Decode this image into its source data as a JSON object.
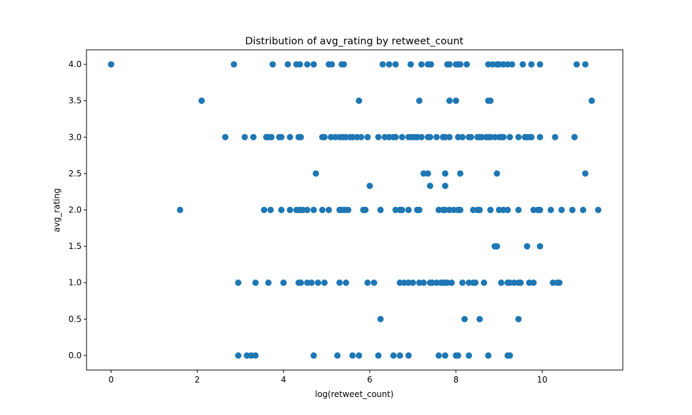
{
  "chart_data": {
    "type": "scatter",
    "title": "Distribution of avg_rating by retweet_count",
    "xlabel": "log(retweet_count)",
    "ylabel": "avg_rating",
    "xlim": [
      -0.57,
      11.87
    ],
    "ylim": [
      -0.2,
      4.2
    ],
    "xticks": [
      0,
      2,
      4,
      6,
      8,
      10
    ],
    "yticks": [
      0.0,
      0.5,
      1.0,
      1.5,
      2.0,
      2.5,
      3.0,
      3.5,
      4.0
    ],
    "xtick_labels": [
      "0",
      "2",
      "4",
      "6",
      "8",
      "10"
    ],
    "ytick_labels": [
      "0.0",
      "0.5",
      "1.0",
      "1.5",
      "2.0",
      "2.5",
      "3.0",
      "3.5",
      "4.0"
    ],
    "grid": false,
    "marker_color": "#1f77b4",
    "points": [
      [
        0.0,
        4.0
      ],
      [
        2.85,
        4.0
      ],
      [
        3.75,
        4.0
      ],
      [
        4.1,
        4.0
      ],
      [
        4.3,
        4.0
      ],
      [
        4.38,
        4.0
      ],
      [
        4.55,
        4.0
      ],
      [
        4.7,
        4.0
      ],
      [
        5.05,
        4.0
      ],
      [
        5.12,
        4.0
      ],
      [
        5.35,
        4.0
      ],
      [
        5.4,
        4.0
      ],
      [
        6.3,
        4.0
      ],
      [
        6.45,
        4.0
      ],
      [
        6.6,
        4.0
      ],
      [
        6.95,
        4.0
      ],
      [
        7.2,
        4.0
      ],
      [
        7.35,
        4.0
      ],
      [
        7.42,
        4.0
      ],
      [
        7.8,
        4.0
      ],
      [
        7.85,
        4.0
      ],
      [
        8.0,
        4.0
      ],
      [
        8.05,
        4.0
      ],
      [
        8.1,
        4.0
      ],
      [
        8.25,
        4.0
      ],
      [
        8.75,
        4.0
      ],
      [
        8.85,
        4.0
      ],
      [
        8.95,
        4.0
      ],
      [
        9.0,
        4.0
      ],
      [
        9.1,
        4.0
      ],
      [
        9.2,
        4.0
      ],
      [
        9.3,
        4.0
      ],
      [
        9.55,
        4.0
      ],
      [
        9.75,
        4.0
      ],
      [
        9.95,
        4.0
      ],
      [
        10.8,
        4.0
      ],
      [
        11.0,
        4.0
      ],
      [
        2.1,
        3.5
      ],
      [
        5.75,
        3.5
      ],
      [
        7.15,
        3.5
      ],
      [
        7.85,
        3.5
      ],
      [
        8.0,
        3.5
      ],
      [
        8.75,
        3.5
      ],
      [
        8.8,
        3.5
      ],
      [
        11.15,
        3.5
      ],
      [
        2.65,
        3.0
      ],
      [
        3.1,
        3.0
      ],
      [
        3.3,
        3.0
      ],
      [
        3.6,
        3.0
      ],
      [
        3.65,
        3.0
      ],
      [
        3.72,
        3.0
      ],
      [
        3.9,
        3.0
      ],
      [
        3.95,
        3.0
      ],
      [
        4.15,
        3.0
      ],
      [
        4.35,
        3.0
      ],
      [
        4.4,
        3.0
      ],
      [
        4.9,
        3.0
      ],
      [
        4.95,
        3.0
      ],
      [
        5.1,
        3.0
      ],
      [
        5.2,
        3.0
      ],
      [
        5.3,
        3.0
      ],
      [
        5.38,
        3.0
      ],
      [
        5.45,
        3.0
      ],
      [
        5.55,
        3.0
      ],
      [
        5.6,
        3.0
      ],
      [
        5.7,
        3.0
      ],
      [
        5.8,
        3.0
      ],
      [
        5.95,
        3.0
      ],
      [
        6.2,
        3.0
      ],
      [
        6.35,
        3.0
      ],
      [
        6.45,
        3.0
      ],
      [
        6.55,
        3.0
      ],
      [
        6.6,
        3.0
      ],
      [
        6.75,
        3.0
      ],
      [
        6.9,
        3.0
      ],
      [
        6.98,
        3.0
      ],
      [
        7.05,
        3.0
      ],
      [
        7.1,
        3.0
      ],
      [
        7.2,
        3.0
      ],
      [
        7.35,
        3.0
      ],
      [
        7.4,
        3.0
      ],
      [
        7.55,
        3.0
      ],
      [
        7.7,
        3.0
      ],
      [
        7.75,
        3.0
      ],
      [
        7.85,
        3.0
      ],
      [
        8.05,
        3.0
      ],
      [
        8.15,
        3.0
      ],
      [
        8.3,
        3.0
      ],
      [
        8.35,
        3.0
      ],
      [
        8.5,
        3.0
      ],
      [
        8.55,
        3.0
      ],
      [
        8.6,
        3.0
      ],
      [
        8.7,
        3.0
      ],
      [
        8.75,
        3.0
      ],
      [
        8.8,
        3.0
      ],
      [
        8.9,
        3.0
      ],
      [
        9.0,
        3.0
      ],
      [
        9.05,
        3.0
      ],
      [
        9.1,
        3.0
      ],
      [
        9.25,
        3.0
      ],
      [
        9.45,
        3.0
      ],
      [
        9.6,
        3.0
      ],
      [
        9.65,
        3.0
      ],
      [
        9.72,
        3.0
      ],
      [
        9.75,
        3.0
      ],
      [
        9.95,
        3.0
      ],
      [
        10.3,
        3.0
      ],
      [
        10.75,
        3.0
      ],
      [
        4.75,
        2.5
      ],
      [
        7.25,
        2.5
      ],
      [
        7.35,
        2.5
      ],
      [
        7.75,
        2.5
      ],
      [
        8.1,
        2.5
      ],
      [
        8.95,
        2.5
      ],
      [
        11.0,
        2.5
      ],
      [
        6.0,
        2.33
      ],
      [
        7.4,
        2.33
      ],
      [
        7.75,
        2.33
      ],
      [
        1.6,
        2.0
      ],
      [
        3.55,
        2.0
      ],
      [
        3.7,
        2.0
      ],
      [
        3.95,
        2.0
      ],
      [
        4.15,
        2.0
      ],
      [
        4.3,
        2.0
      ],
      [
        4.38,
        2.0
      ],
      [
        4.45,
        2.0
      ],
      [
        4.55,
        2.0
      ],
      [
        4.7,
        2.0
      ],
      [
        4.9,
        2.0
      ],
      [
        5.05,
        2.0
      ],
      [
        5.3,
        2.0
      ],
      [
        5.35,
        2.0
      ],
      [
        5.42,
        2.0
      ],
      [
        5.5,
        2.0
      ],
      [
        5.85,
        2.0
      ],
      [
        5.9,
        2.0
      ],
      [
        6.25,
        2.0
      ],
      [
        6.6,
        2.0
      ],
      [
        6.7,
        2.0
      ],
      [
        6.75,
        2.0
      ],
      [
        6.9,
        2.0
      ],
      [
        7.1,
        2.0
      ],
      [
        7.15,
        2.0
      ],
      [
        7.6,
        2.0
      ],
      [
        7.7,
        2.0
      ],
      [
        7.75,
        2.0
      ],
      [
        7.85,
        2.0
      ],
      [
        7.95,
        2.0
      ],
      [
        8.05,
        2.0
      ],
      [
        8.1,
        2.0
      ],
      [
        8.4,
        2.0
      ],
      [
        8.5,
        2.0
      ],
      [
        8.55,
        2.0
      ],
      [
        8.8,
        2.0
      ],
      [
        9.0,
        2.0
      ],
      [
        9.1,
        2.0
      ],
      [
        9.2,
        2.0
      ],
      [
        9.45,
        2.0
      ],
      [
        9.8,
        2.0
      ],
      [
        9.9,
        2.0
      ],
      [
        9.95,
        2.0
      ],
      [
        10.2,
        2.0
      ],
      [
        10.45,
        2.0
      ],
      [
        10.7,
        2.0
      ],
      [
        10.95,
        2.0
      ],
      [
        11.3,
        2.0
      ],
      [
        8.9,
        1.5
      ],
      [
        8.95,
        1.5
      ],
      [
        9.65,
        1.5
      ],
      [
        9.95,
        1.5
      ],
      [
        2.95,
        1.0
      ],
      [
        3.35,
        1.0
      ],
      [
        3.65,
        1.0
      ],
      [
        4.0,
        1.0
      ],
      [
        4.35,
        1.0
      ],
      [
        4.4,
        1.0
      ],
      [
        4.55,
        1.0
      ],
      [
        4.65,
        1.0
      ],
      [
        4.8,
        1.0
      ],
      [
        4.95,
        1.0
      ],
      [
        5.3,
        1.0
      ],
      [
        5.45,
        1.0
      ],
      [
        5.95,
        1.0
      ],
      [
        6.1,
        1.0
      ],
      [
        6.7,
        1.0
      ],
      [
        6.8,
        1.0
      ],
      [
        6.9,
        1.0
      ],
      [
        7.0,
        1.0
      ],
      [
        7.15,
        1.0
      ],
      [
        7.25,
        1.0
      ],
      [
        7.4,
        1.0
      ],
      [
        7.45,
        1.0
      ],
      [
        7.55,
        1.0
      ],
      [
        7.65,
        1.0
      ],
      [
        7.7,
        1.0
      ],
      [
        7.75,
        1.0
      ],
      [
        7.8,
        1.0
      ],
      [
        7.9,
        1.0
      ],
      [
        8.15,
        1.0
      ],
      [
        8.3,
        1.0
      ],
      [
        8.4,
        1.0
      ],
      [
        8.45,
        1.0
      ],
      [
        8.65,
        1.0
      ],
      [
        9.05,
        1.0
      ],
      [
        9.2,
        1.0
      ],
      [
        9.25,
        1.0
      ],
      [
        9.35,
        1.0
      ],
      [
        9.45,
        1.0
      ],
      [
        9.5,
        1.0
      ],
      [
        9.7,
        1.0
      ],
      [
        9.8,
        1.0
      ],
      [
        10.25,
        1.0
      ],
      [
        10.35,
        1.0
      ],
      [
        10.4,
        1.0
      ],
      [
        6.25,
        0.5
      ],
      [
        8.2,
        0.5
      ],
      [
        8.55,
        0.5
      ],
      [
        9.45,
        0.5
      ],
      [
        2.95,
        0.0
      ],
      [
        3.15,
        0.0
      ],
      [
        3.25,
        0.0
      ],
      [
        3.35,
        0.0
      ],
      [
        4.7,
        0.0
      ],
      [
        5.25,
        0.0
      ],
      [
        5.6,
        0.0
      ],
      [
        5.75,
        0.0
      ],
      [
        6.2,
        0.0
      ],
      [
        6.55,
        0.0
      ],
      [
        6.7,
        0.0
      ],
      [
        6.9,
        0.0
      ],
      [
        7.6,
        0.0
      ],
      [
        7.75,
        0.0
      ],
      [
        8.0,
        0.0
      ],
      [
        8.05,
        0.0
      ],
      [
        8.3,
        0.0
      ],
      [
        8.75,
        0.0
      ],
      [
        9.2,
        0.0
      ],
      [
        9.25,
        0.0
      ]
    ]
  }
}
